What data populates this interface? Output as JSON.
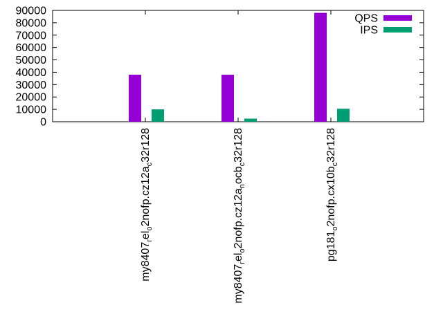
{
  "chart_data": {
    "type": "bar",
    "title": "",
    "xlabel": "",
    "ylabel": "",
    "ylim": [
      0,
      90000
    ],
    "yticks": [
      0,
      10000,
      20000,
      30000,
      40000,
      50000,
      60000,
      70000,
      80000,
      90000
    ],
    "categories": [
      "my8407_rel_o2nofp.cz12a_c32r128",
      "my8407_rel_o2nofp.cz12a_nocb_c32r128",
      "pg181_o2nofp.cx10b_c32r128"
    ],
    "category_parts": [
      [
        {
          "t": "my8407",
          "s": "n"
        },
        {
          "t": "r",
          "s": "sub"
        },
        {
          "t": "el",
          "s": "n"
        },
        {
          "t": "o",
          "s": "sub"
        },
        {
          "t": "2nofp.cz12a",
          "s": "n"
        },
        {
          "t": "c",
          "s": "sub"
        },
        {
          "t": "32r128",
          "s": "n"
        }
      ],
      [
        {
          "t": "my8407",
          "s": "n"
        },
        {
          "t": "r",
          "s": "sub"
        },
        {
          "t": "el",
          "s": "n"
        },
        {
          "t": "o",
          "s": "sub"
        },
        {
          "t": "2nofp.cz12a",
          "s": "n"
        },
        {
          "t": "n",
          "s": "sub"
        },
        {
          "t": "ocb",
          "s": "n"
        },
        {
          "t": "c",
          "s": "sub"
        },
        {
          "t": "32r128",
          "s": "n"
        }
      ],
      [
        {
          "t": "pg181",
          "s": "n"
        },
        {
          "t": "o",
          "s": "sub"
        },
        {
          "t": "2nofp.cx10b",
          "s": "n"
        },
        {
          "t": "c",
          "s": "sub"
        },
        {
          "t": "32r128",
          "s": "n"
        }
      ]
    ],
    "series": [
      {
        "name": "QPS",
        "color": "#9400d3",
        "values": [
          38000,
          38000,
          88000
        ]
      },
      {
        "name": "IPS",
        "color": "#009e73",
        "values": [
          10000,
          2500,
          10500
        ]
      }
    ],
    "legend": "top-right",
    "grid": false
  }
}
